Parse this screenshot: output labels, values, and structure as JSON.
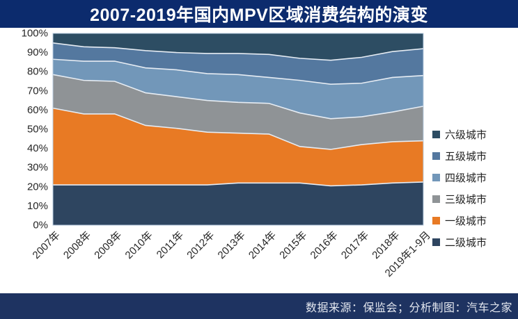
{
  "title_bar": {
    "title": "2007-2019年国内MPV区域消费结构的演变",
    "bg_color": "#0c2b6d"
  },
  "footer": {
    "text": "数据来源：保监会；分析制图：汽车之家",
    "bg_color": "#1e3361"
  },
  "chart_data": {
    "type": "area",
    "stacked": true,
    "title": "2007-2019年国内MPV区域消费结构的演变",
    "xlabel": "",
    "ylabel": "",
    "unit": "%",
    "ylim": [
      0,
      100
    ],
    "yticks": [
      "0%",
      "10%",
      "20%",
      "30%",
      "40%",
      "50%",
      "60%",
      "70%",
      "80%",
      "90%",
      "100%"
    ],
    "grid": false,
    "legend_position": "right",
    "categories": [
      "2007年",
      "2008年",
      "2009年",
      "2010年",
      "2011年",
      "2012年",
      "2013年",
      "2014年",
      "2015年",
      "2016年",
      "2017年",
      "2018年",
      "2019年1-9月"
    ],
    "series": [
      {
        "key": "tier-2",
        "name": "二级城市",
        "color": "#2e4560",
        "values": [
          21,
          21,
          21,
          21,
          21,
          21,
          22,
          22,
          22,
          20.5,
          21,
          22,
          22.5
        ]
      },
      {
        "key": "tier-1",
        "name": "一级城市",
        "color": "#e87a24",
        "values": [
          40,
          37,
          37,
          31,
          29.5,
          27.5,
          26,
          25.5,
          19,
          19,
          21,
          21.5,
          21.5
        ]
      },
      {
        "key": "tier-3",
        "name": "三级城市",
        "color": "#8f9396",
        "values": [
          17.5,
          17.5,
          17,
          17,
          16.5,
          16.5,
          16,
          16,
          17.5,
          16,
          14.5,
          15.5,
          18
        ]
      },
      {
        "key": "tier-4",
        "name": "四级城市",
        "color": "#7297b9",
        "values": [
          8,
          10,
          10.5,
          13,
          14,
          14,
          14.5,
          13.5,
          17,
          18,
          17.5,
          18,
          16
        ]
      },
      {
        "key": "tier-5",
        "name": "五级城市",
        "color": "#54789f",
        "values": [
          8.5,
          7.5,
          7,
          9,
          9,
          10.5,
          11,
          12,
          11.5,
          12.5,
          13.5,
          13.5,
          14
        ]
      },
      {
        "key": "tier-6",
        "name": "六级城市",
        "color": "#2d4d63",
        "values": [
          5,
          7,
          7.5,
          9,
          10,
          10.5,
          10.5,
          11,
          13,
          14,
          12.5,
          9.5,
          8
        ]
      }
    ],
    "legend": [
      {
        "key": "tier-6",
        "label": "六级城市",
        "color": "#2d4d63"
      },
      {
        "key": "tier-5",
        "label": "五级城市",
        "color": "#54789f"
      },
      {
        "key": "tier-4",
        "label": "四级城市",
        "color": "#7297b9"
      },
      {
        "key": "tier-3",
        "label": "三级城市",
        "color": "#8f9396"
      },
      {
        "key": "tier-1",
        "label": "一级城市",
        "color": "#e87a24"
      },
      {
        "key": "tier-2",
        "label": "二级城市",
        "color": "#2e4560"
      }
    ],
    "boundary_line_color": "#e6ecf3",
    "plot_border_color": "#b9cde0"
  }
}
